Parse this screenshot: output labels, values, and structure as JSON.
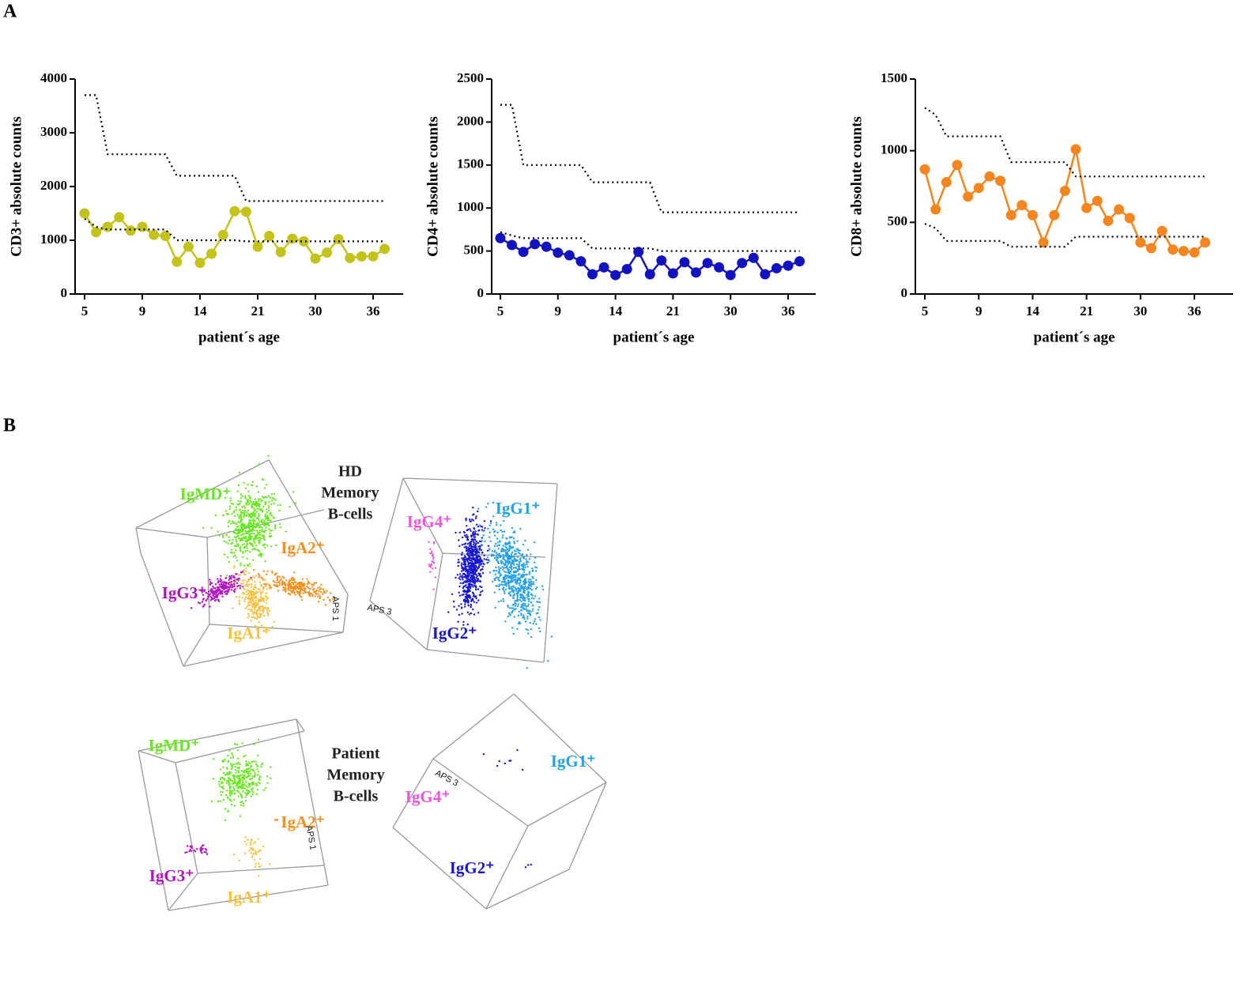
{
  "panel_labels": [
    "A",
    "B"
  ],
  "chart_data": [
    {
      "type": "line",
      "ylabel": "CD3+ absolute counts",
      "xlabel": "patient´s age",
      "categories": [
        5,
        null,
        null,
        null,
        null,
        9,
        null,
        null,
        null,
        null,
        14,
        null,
        null,
        null,
        null,
        21,
        null,
        null,
        null,
        null,
        30,
        null,
        null,
        null,
        null,
        36,
        null
      ],
      "ylim": [
        0,
        4000
      ],
      "yticks": [
        0,
        1000,
        2000,
        3000,
        4000
      ],
      "series": [
        {
          "color": "#c3c31c",
          "markers": true,
          "values": [
            1500,
            1150,
            1250,
            1430,
            1180,
            1250,
            1100,
            1080,
            600,
            880,
            580,
            750,
            1100,
            1540,
            1530,
            880,
            1080,
            780,
            1030,
            980,
            660,
            770,
            1020,
            670,
            700,
            700,
            840
          ]
        },
        {
          "color": "#000000",
          "dash": "dotted",
          "values": [
            3700,
            3700,
            2600,
            2600,
            2600,
            2600,
            2600,
            2600,
            2200,
            2200,
            2200,
            2200,
            2200,
            2200,
            1730,
            1730,
            1730,
            1730,
            1730,
            1730,
            1730,
            1730,
            1730,
            1730,
            1730,
            1730,
            1730
          ]
        },
        {
          "color": "#000000",
          "dash": "dotted",
          "values": [
            1400,
            1250,
            1200,
            1200,
            1200,
            1200,
            1200,
            1200,
            1000,
            1000,
            1000,
            1000,
            1000,
            1000,
            980,
            980,
            980,
            980,
            980,
            980,
            980,
            980,
            980,
            980,
            980,
            980,
            980
          ]
        }
      ]
    },
    {
      "type": "line",
      "ylabel": "CD4+ absolute counts",
      "xlabel": "patient´s age",
      "categories": [
        5,
        null,
        null,
        null,
        null,
        9,
        null,
        null,
        null,
        null,
        14,
        null,
        null,
        null,
        null,
        21,
        null,
        null,
        null,
        null,
        30,
        null,
        null,
        null,
        null,
        36,
        null
      ],
      "ylim": [
        0,
        2500
      ],
      "yticks": [
        0,
        500,
        1000,
        1500,
        2000,
        2500
      ],
      "series": [
        {
          "color": "#1212c0",
          "markers": true,
          "values": [
            650,
            570,
            490,
            580,
            550,
            480,
            450,
            380,
            230,
            310,
            220,
            290,
            490,
            230,
            390,
            240,
            370,
            250,
            360,
            310,
            220,
            360,
            420,
            230,
            300,
            330,
            380
          ]
        },
        {
          "color": "#000000",
          "dash": "dotted",
          "values": [
            2200,
            2200,
            1500,
            1500,
            1500,
            1500,
            1500,
            1500,
            1300,
            1300,
            1300,
            1300,
            1300,
            1300,
            950,
            950,
            950,
            950,
            950,
            950,
            950,
            950,
            950,
            950,
            950,
            950,
            950
          ]
        },
        {
          "color": "#000000",
          "dash": "dotted",
          "values": [
            720,
            680,
            650,
            650,
            650,
            650,
            650,
            650,
            530,
            530,
            530,
            530,
            530,
            530,
            500,
            500,
            500,
            500,
            500,
            500,
            500,
            500,
            500,
            500,
            500,
            500,
            500
          ]
        }
      ]
    },
    {
      "type": "line",
      "ylabel": "CD8+ absolute counts",
      "xlabel": "patient´s age",
      "categories": [
        5,
        null,
        null,
        null,
        null,
        9,
        null,
        null,
        null,
        null,
        14,
        null,
        null,
        null,
        null,
        21,
        null,
        null,
        null,
        null,
        30,
        null,
        null,
        null,
        null,
        36,
        null
      ],
      "ylim": [
        0,
        1500
      ],
      "yticks": [
        0,
        500,
        1000,
        1500
      ],
      "series": [
        {
          "color": "#f5861f",
          "markers": true,
          "values": [
            870,
            590,
            780,
            900,
            680,
            740,
            820,
            790,
            550,
            620,
            550,
            360,
            550,
            720,
            1010,
            600,
            650,
            510,
            590,
            530,
            360,
            320,
            440,
            310,
            300,
            290,
            360
          ]
        },
        {
          "color": "#000000",
          "dash": "dotted",
          "values": [
            1300,
            1250,
            1100,
            1100,
            1100,
            1100,
            1100,
            1100,
            920,
            920,
            920,
            920,
            920,
            920,
            820,
            820,
            820,
            820,
            820,
            820,
            820,
            820,
            820,
            820,
            820,
            820,
            820
          ]
        },
        {
          "color": "#000000",
          "dash": "dotted",
          "values": [
            490,
            460,
            370,
            370,
            370,
            370,
            370,
            370,
            330,
            330,
            330,
            330,
            330,
            330,
            400,
            400,
            400,
            400,
            400,
            400,
            400,
            400,
            400,
            400,
            400,
            400,
            400
          ]
        }
      ]
    }
  ],
  "panel_b": {
    "groups": [
      {
        "title": [
          "HD",
          "Memory",
          "B-cells"
        ],
        "labels": [
          "IgMD⁺",
          "IgA2⁺",
          "IgG3⁺",
          "IgA1⁺",
          "IgG4⁺",
          "IgG1⁺",
          "IgG2⁺"
        ],
        "axes": [
          "APS 1",
          "APS 3"
        ]
      },
      {
        "title": [
          "Patient",
          "Memory",
          "B-cells"
        ],
        "labels": [
          "IgMD⁺",
          "IgA2⁺",
          "IgG3⁺",
          "IgA1⁺",
          "IgG4⁺",
          "IgG1⁺",
          "IgG2⁺"
        ],
        "axes": [
          "APS 1",
          "APS 3"
        ]
      }
    ]
  }
}
